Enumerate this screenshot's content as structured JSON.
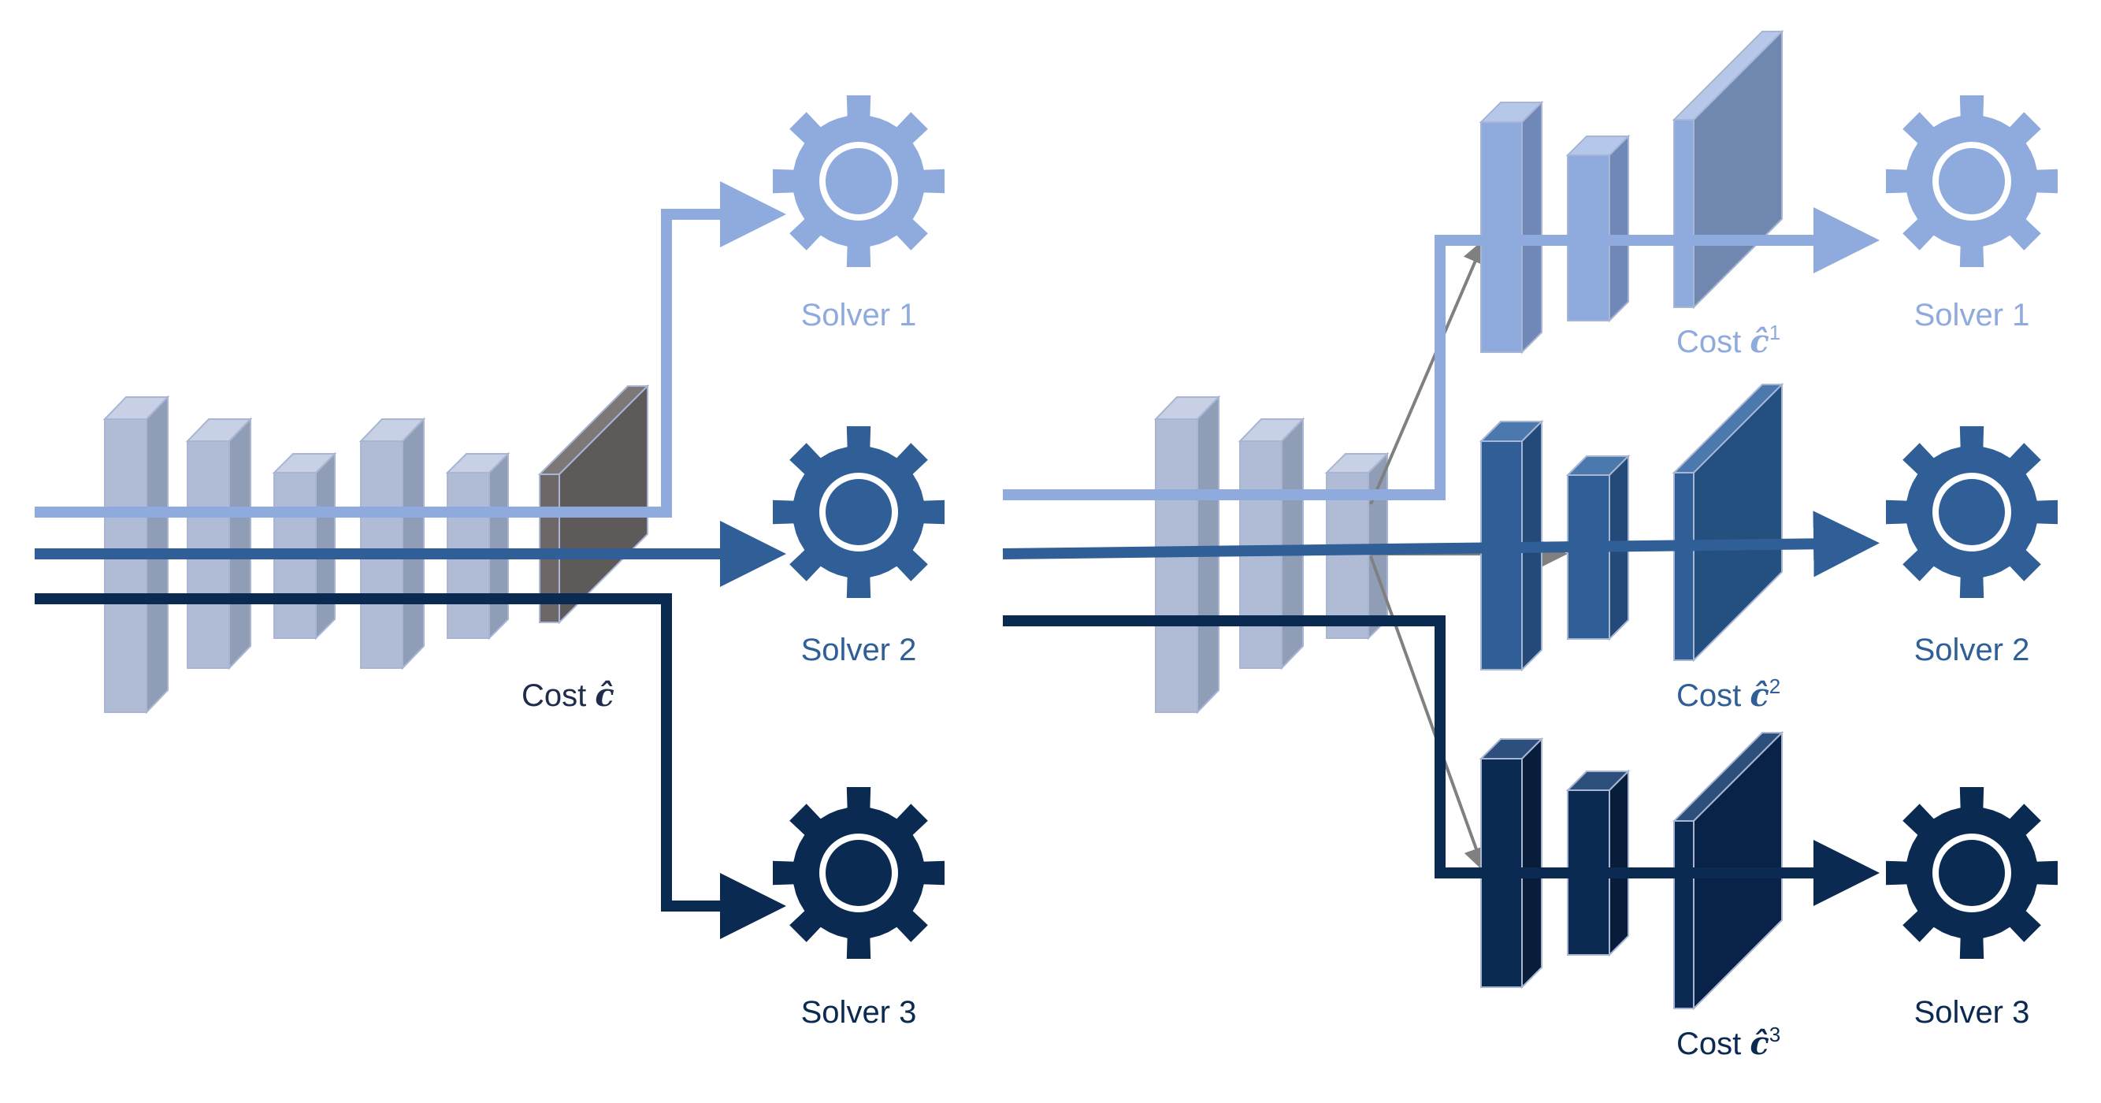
{
  "colors": {
    "light": "#8faadc",
    "mid": "#2f5f96",
    "dark": "#0b2a52",
    "layer_gray": "#b0bcd6",
    "cost_gray": "#5f5a5a",
    "connector": "#808080"
  },
  "left": {
    "cost_label": "Cost",
    "cost_symbol": "ĉ",
    "solvers": [
      {
        "label": "Solver 1",
        "icon": "gear-icon"
      },
      {
        "label": "Solver 2",
        "icon": "gear-icon"
      },
      {
        "label": "Solver 3",
        "icon": "gear-icon"
      }
    ]
  },
  "right": {
    "branches": [
      {
        "cost_label": "Cost",
        "cost_symbol": "ĉ",
        "cost_sup": "1",
        "solver": "Solver 1"
      },
      {
        "cost_label": "Cost",
        "cost_symbol": "ĉ",
        "cost_sup": "2",
        "solver": "Solver 2"
      },
      {
        "cost_label": "Cost",
        "cost_symbol": "ĉ",
        "cost_sup": "3",
        "solver": "Solver 3"
      }
    ]
  }
}
